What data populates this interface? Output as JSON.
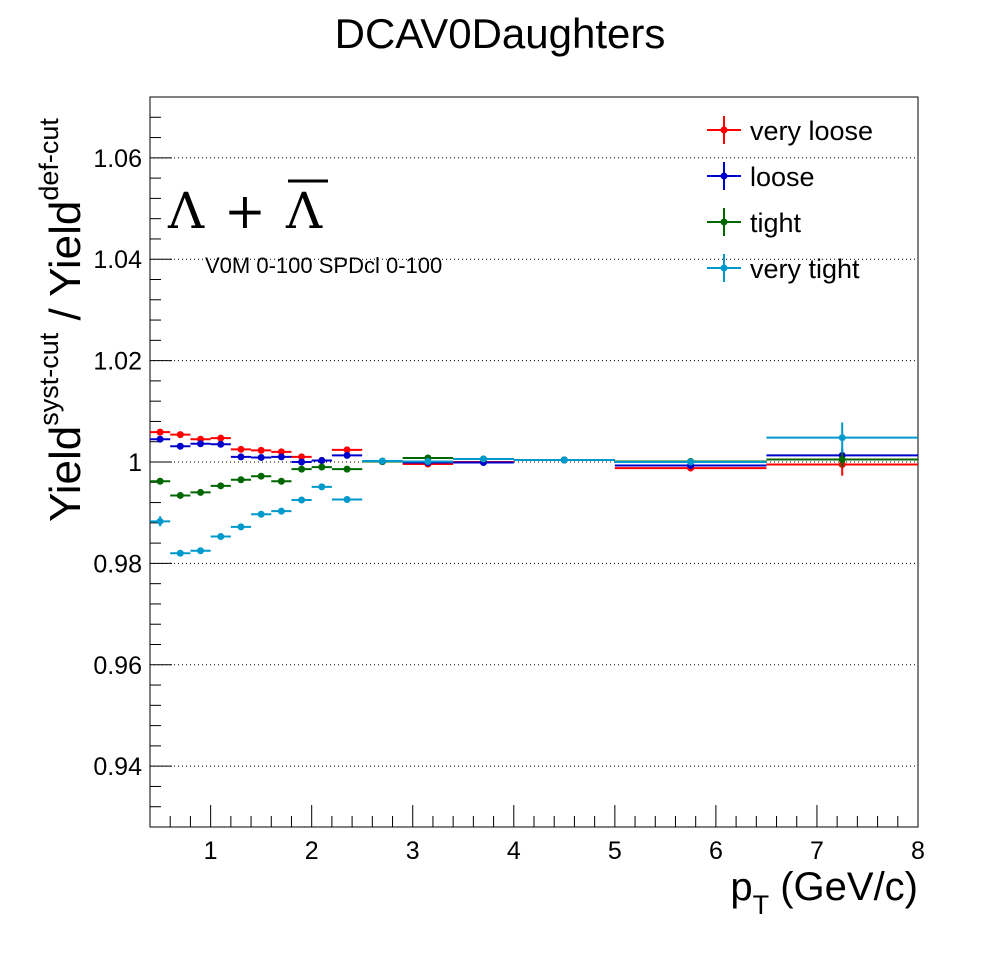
{
  "chart_data": {
    "type": "scatter",
    "title": "DCAV0Daughters",
    "xlabel": "p_T (GeV/c)",
    "xlabel_main": "p",
    "xlabel_sub": "T",
    "xlabel_rest": " (GeV/c)",
    "ylabel": "Yield^{syst-cut} / Yield^{def-cut}",
    "ylabel_parts": {
      "a": "Yield",
      "a_sup": "syst-cut",
      "b": " / Yield",
      "b_sup": "def-cut"
    },
    "particle_label": "Λ + Λ̄",
    "particle_parts": {
      "lambda1": "Λ",
      "plus": " + ",
      "lambda2": "Λ"
    },
    "annotation": "V0M 0-100 SPDcl 0-100",
    "xlim": [
      0.4,
      8.0
    ],
    "ylim": [
      0.928,
      1.072
    ],
    "x_ticks": [
      1,
      2,
      3,
      4,
      5,
      6,
      7,
      8
    ],
    "y_ticks": [
      0.94,
      0.96,
      0.98,
      1,
      1.02,
      1.04,
      1.06
    ],
    "y_tick_labels": [
      "0.94",
      "0.96",
      "0.98",
      "1",
      "1.02",
      "1.04",
      "1.06"
    ],
    "grid": "horizontal dotted",
    "legend_position": "top-right",
    "bins": [
      [
        0.4,
        0.6
      ],
      [
        0.6,
        0.8
      ],
      [
        0.8,
        1.0
      ],
      [
        1.0,
        1.2
      ],
      [
        1.2,
        1.4
      ],
      [
        1.4,
        1.6
      ],
      [
        1.6,
        1.8
      ],
      [
        1.8,
        2.0
      ],
      [
        2.0,
        2.2
      ],
      [
        2.2,
        2.5
      ],
      [
        2.5,
        2.9
      ],
      [
        2.9,
        3.4
      ],
      [
        3.4,
        4.0
      ],
      [
        4.0,
        5.0
      ],
      [
        5.0,
        6.5
      ],
      [
        6.5,
        8.0
      ]
    ],
    "series": [
      {
        "name": "very loose",
        "color": "#ff0000",
        "values": [
          1.0059,
          1.0054,
          1.0045,
          1.0047,
          1.0025,
          1.0023,
          1.002,
          1.001,
          1.0003,
          1.0024,
          1.0001,
          0.9996,
          1.0,
          1.0004,
          0.9988,
          0.9995
        ],
        "errors": [
          0.0004,
          0.0003,
          0.0003,
          0.0003,
          0.0003,
          0.0003,
          0.0003,
          0.0003,
          0.0003,
          0.0003,
          0.0003,
          0.0003,
          0.0003,
          0.0004,
          0.0005,
          0.0022
        ]
      },
      {
        "name": "loose",
        "color": "#0000cc",
        "values": [
          1.0045,
          1.0031,
          1.0036,
          1.0035,
          1.001,
          1.0009,
          1.001,
          1.0,
          1.0003,
          1.0013,
          1.0001,
          0.9999,
          0.9999,
          1.0004,
          0.9993,
          1.0013
        ],
        "errors": [
          0.0003,
          0.0003,
          0.0003,
          0.0003,
          0.0003,
          0.0003,
          0.0003,
          0.0003,
          0.0003,
          0.0003,
          0.0003,
          0.0003,
          0.0003,
          0.0003,
          0.0004,
          0.0013
        ]
      },
      {
        "name": "tight",
        "color": "#006600",
        "values": [
          0.9962,
          0.9934,
          0.994,
          0.9953,
          0.9965,
          0.9972,
          0.9962,
          0.9986,
          0.999,
          0.9986,
          1.0001,
          1.0008,
          1.0006,
          1.0004,
          1.0001,
          1.0005
        ],
        "errors": [
          0.0004,
          0.0003,
          0.0003,
          0.0003,
          0.0003,
          0.0003,
          0.0003,
          0.0003,
          0.0003,
          0.0003,
          0.0003,
          0.0003,
          0.0003,
          0.0003,
          0.0004,
          0.0015
        ]
      },
      {
        "name": "very tight",
        "color": "#0099cc",
        "values": [
          0.9883,
          0.982,
          0.9825,
          0.9853,
          0.9872,
          0.9897,
          0.9903,
          0.9925,
          0.9951,
          0.9926,
          1.0002,
          1.0001,
          1.0006,
          1.0004,
          1.0,
          1.0048
        ],
        "errors": [
          0.001,
          0.0005,
          0.0005,
          0.0005,
          0.0005,
          0.0005,
          0.0005,
          0.0005,
          0.0006,
          0.0005,
          0.0004,
          0.0004,
          0.0004,
          0.0005,
          0.0006,
          0.003
        ]
      }
    ]
  }
}
